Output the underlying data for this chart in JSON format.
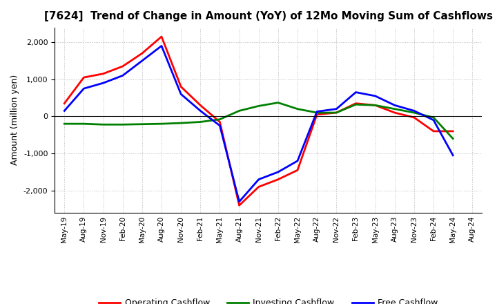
{
  "title": "[7624]  Trend of Change in Amount (YoY) of 12Mo Moving Sum of Cashflows",
  "ylabel": "Amount (million yen)",
  "x_labels": [
    "May-19",
    "Aug-19",
    "Nov-19",
    "Feb-20",
    "May-20",
    "Aug-20",
    "Nov-20",
    "Feb-21",
    "May-21",
    "Aug-21",
    "Nov-21",
    "Feb-22",
    "May-22",
    "Aug-22",
    "Nov-22",
    "Feb-23",
    "May-23",
    "Aug-23",
    "Nov-23",
    "Feb-24",
    "May-24",
    "Aug-24"
  ],
  "operating_cashflow": [
    350,
    1050,
    1150,
    1350,
    1700,
    2150,
    800,
    300,
    -150,
    -2400,
    -1900,
    -1700,
    -1450,
    50,
    100,
    350,
    300,
    100,
    -30,
    -400,
    -400,
    null
  ],
  "investing_cashflow": [
    -200,
    -200,
    -220,
    -220,
    -210,
    -200,
    -180,
    -150,
    -80,
    150,
    280,
    370,
    200,
    100,
    100,
    320,
    300,
    200,
    100,
    -30,
    -600,
    null
  ],
  "free_cashflow": [
    150,
    750,
    900,
    1100,
    1500,
    1900,
    600,
    150,
    -250,
    -2300,
    -1700,
    -1500,
    -1200,
    130,
    200,
    650,
    550,
    300,
    150,
    -100,
    -1050,
    null
  ],
  "ylim": [
    -2600,
    2400
  ],
  "yticks": [
    -2000,
    -1000,
    0,
    1000,
    2000
  ],
  "operating_color": "#ff0000",
  "investing_color": "#008000",
  "free_color": "#0000ff",
  "line_width": 2.0,
  "bg_color": "#ffffff",
  "grid_color": "#bbbbbb",
  "legend_labels": [
    "Operating Cashflow",
    "Investing Cashflow",
    "Free Cashflow"
  ]
}
